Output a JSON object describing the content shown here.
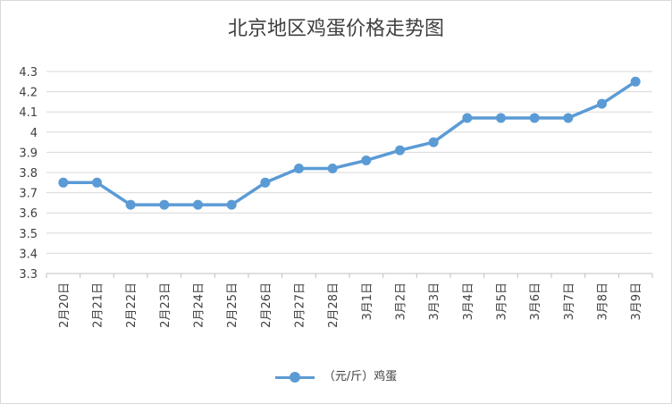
{
  "chart_data": {
    "type": "line",
    "title": "北京地区鸡蛋价格走势图",
    "categories": [
      "2月20日",
      "2月21日",
      "2月22日",
      "2月23日",
      "2月24日",
      "2月25日",
      "2月26日",
      "2月27日",
      "2月28日",
      "3月1日",
      "3月2日",
      "3月3日",
      "3月4日",
      "3月5日",
      "3月6日",
      "3月7日",
      "3月8日",
      "3月9日"
    ],
    "series": [
      {
        "name": "（元/斤）鸡蛋",
        "values": [
          3.75,
          3.75,
          3.64,
          3.64,
          3.64,
          3.64,
          3.75,
          3.82,
          3.82,
          3.86,
          3.91,
          3.95,
          4.07,
          4.07,
          4.07,
          4.07,
          4.14,
          4.25
        ]
      }
    ],
    "yticks": [
      "3.3",
      "3.4",
      "3.5",
      "3.6",
      "3.7",
      "3.8",
      "3.9",
      "4",
      "4.1",
      "4.2",
      "4.3"
    ],
    "ylim": [
      3.3,
      4.3
    ],
    "grid": true,
    "legend_position": "bottom",
    "line_color": "#5b9bd5"
  }
}
